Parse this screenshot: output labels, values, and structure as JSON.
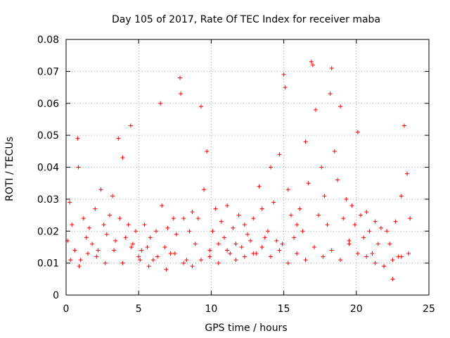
{
  "chart_data": {
    "type": "scatter",
    "title": "Day 105 of 2017, Rate Of TEC Index for receiver maba",
    "xlabel": "GPS time / hours",
    "ylabel": "ROTI / TECUs",
    "xlim": [
      0,
      25
    ],
    "ylim": [
      0,
      0.08
    ],
    "xticks": [
      0,
      5,
      10,
      15,
      20,
      25
    ],
    "yticks": [
      0,
      0.01,
      0.02,
      0.03,
      0.04,
      0.05,
      0.06,
      0.07,
      0.08
    ],
    "xtick_labels": [
      "0",
      "5",
      "10",
      "15",
      "20",
      "25"
    ],
    "ytick_labels": [
      "0",
      "0.01",
      "0.02",
      "0.03",
      "0.04",
      "0.05",
      "0.06",
      "0.07",
      "0.08"
    ],
    "grid": true,
    "marker": "+",
    "series": [
      {
        "name": "ROTI",
        "color": "#ff0000",
        "x": [
          0.1,
          0.25,
          0.4,
          0.6,
          0.8,
          0.85,
          1.0,
          1.2,
          1.4,
          1.6,
          1.8,
          2.0,
          2.2,
          2.4,
          2.6,
          2.8,
          3.0,
          3.2,
          3.4,
          3.6,
          3.7,
          3.9,
          4.1,
          4.3,
          4.45,
          4.6,
          4.8,
          5.0,
          5.2,
          5.4,
          5.6,
          5.8,
          6.0,
          6.2,
          6.5,
          6.6,
          6.8,
          7.0,
          7.2,
          7.4,
          7.6,
          7.85,
          7.9,
          8.1,
          8.3,
          8.5,
          8.7,
          8.9,
          9.1,
          9.3,
          9.5,
          9.7,
          9.9,
          10.1,
          10.3,
          10.5,
          10.7,
          10.9,
          11.1,
          11.3,
          11.5,
          11.7,
          11.9,
          12.1,
          12.3,
          12.5,
          12.7,
          12.9,
          13.1,
          13.3,
          13.5,
          13.7,
          13.9,
          14.1,
          14.3,
          14.5,
          14.7,
          14.9,
          15.0,
          15.1,
          15.3,
          15.5,
          15.7,
          15.9,
          16.1,
          16.3,
          16.5,
          16.7,
          16.9,
          17.0,
          17.2,
          17.4,
          17.6,
          17.8,
          18.0,
          18.2,
          18.3,
          18.5,
          18.7,
          18.9,
          19.1,
          19.3,
          19.5,
          19.7,
          19.9,
          20.1,
          20.3,
          20.5,
          20.7,
          20.9,
          21.1,
          21.3,
          21.5,
          21.7,
          21.9,
          22.1,
          22.3,
          22.5,
          22.7,
          22.9,
          23.1,
          23.3,
          23.5,
          23.7,
          0.3,
          0.9,
          1.5,
          2.1,
          2.7,
          3.3,
          3.9,
          4.5,
          5.1,
          5.7,
          6.3,
          6.9,
          7.5,
          8.1,
          8.7,
          9.3,
          9.9,
          10.5,
          11.1,
          11.7,
          12.3,
          12.9,
          13.5,
          14.1,
          14.7,
          15.3,
          15.9,
          16.5,
          17.1,
          17.7,
          18.3,
          18.9,
          19.5,
          20.1,
          20.7,
          21.3,
          21.9,
          22.5,
          23.1,
          23.6
        ],
        "y": [
          0.017,
          0.029,
          0.022,
          0.014,
          0.049,
          0.04,
          0.011,
          0.024,
          0.018,
          0.021,
          0.016,
          0.027,
          0.014,
          0.033,
          0.022,
          0.019,
          0.025,
          0.031,
          0.017,
          0.049,
          0.024,
          0.043,
          0.018,
          0.022,
          0.053,
          0.016,
          0.02,
          0.012,
          0.014,
          0.022,
          0.015,
          0.018,
          0.011,
          0.02,
          0.06,
          0.028,
          0.015,
          0.021,
          0.013,
          0.024,
          0.019,
          0.068,
          0.063,
          0.024,
          0.011,
          0.02,
          0.026,
          0.016,
          0.024,
          0.059,
          0.033,
          0.045,
          0.014,
          0.02,
          0.027,
          0.016,
          0.023,
          0.018,
          0.028,
          0.013,
          0.021,
          0.016,
          0.025,
          0.015,
          0.022,
          0.019,
          0.017,
          0.024,
          0.013,
          0.034,
          0.027,
          0.018,
          0.02,
          0.04,
          0.029,
          0.017,
          0.044,
          0.016,
          0.069,
          0.065,
          0.033,
          0.025,
          0.018,
          0.022,
          0.027,
          0.02,
          0.048,
          0.035,
          0.073,
          0.072,
          0.058,
          0.025,
          0.04,
          0.031,
          0.022,
          0.063,
          0.071,
          0.045,
          0.036,
          0.059,
          0.024,
          0.03,
          0.017,
          0.028,
          0.022,
          0.051,
          0.025,
          0.018,
          0.026,
          0.02,
          0.013,
          0.023,
          0.016,
          0.021,
          0.009,
          0.02,
          0.016,
          0.005,
          0.023,
          0.012,
          0.031,
          0.053,
          0.038,
          0.024,
          0.011,
          0.009,
          0.013,
          0.012,
          0.01,
          0.014,
          0.01,
          0.015,
          0.011,
          0.009,
          0.012,
          0.008,
          0.013,
          0.01,
          0.009,
          0.011,
          0.012,
          0.01,
          0.014,
          0.011,
          0.012,
          0.013,
          0.015,
          0.012,
          0.014,
          0.01,
          0.013,
          0.011,
          0.015,
          0.012,
          0.014,
          0.011,
          0.016,
          0.013,
          0.012,
          0.01,
          0.009,
          0.011,
          0.012,
          0.013
        ]
      }
    ]
  }
}
